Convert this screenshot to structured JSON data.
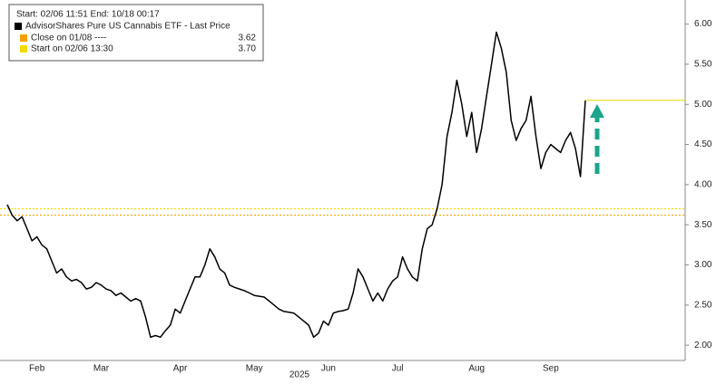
{
  "chart_data": {
    "type": "line",
    "legend_header": "Start: 02/06 11:51 End: 10/18 00:17",
    "x_axis_label": "2025",
    "categories": [
      null,
      null,
      null,
      null,
      null,
      null,
      "Feb",
      null,
      null,
      null,
      null,
      null,
      null,
      null,
      null,
      null,
      null,
      null,
      null,
      "Mar",
      null,
      null,
      null,
      null,
      null,
      null,
      null,
      null,
      null,
      null,
      null,
      null,
      null,
      null,
      null,
      "Apr",
      null,
      null,
      null,
      null,
      null,
      null,
      null,
      null,
      null,
      null,
      null,
      null,
      null,
      null,
      "May",
      null,
      null,
      null,
      null,
      null,
      null,
      null,
      null,
      null,
      null,
      null,
      null,
      null,
      null,
      "Jun",
      null,
      null,
      null,
      null,
      null,
      null,
      null,
      null,
      null,
      null,
      null,
      null,
      null,
      "Jul",
      null,
      null,
      null,
      null,
      null,
      null,
      null,
      null,
      null,
      null,
      null,
      null,
      null,
      null,
      null,
      "Aug",
      null,
      null,
      null,
      null,
      null,
      null,
      null,
      null,
      null,
      null,
      null,
      null,
      null,
      null,
      "Sep",
      null,
      null,
      null,
      null,
      null,
      null,
      null
    ],
    "series": [
      {
        "name": "AdvisorShares Pure US Cannabis ETF - Last Price",
        "color": "#000000",
        "values": [
          3.75,
          3.62,
          3.55,
          3.6,
          3.45,
          3.3,
          3.35,
          3.25,
          3.2,
          3.05,
          2.9,
          2.95,
          2.85,
          2.8,
          2.82,
          2.78,
          2.7,
          2.72,
          2.78,
          2.75,
          2.7,
          2.68,
          2.62,
          2.65,
          2.6,
          2.55,
          2.58,
          2.55,
          2.35,
          2.1,
          2.12,
          2.1,
          2.18,
          2.25,
          2.45,
          2.4,
          2.55,
          2.7,
          2.85,
          2.85,
          3.0,
          3.2,
          3.1,
          2.95,
          2.9,
          2.75,
          2.72,
          2.7,
          2.68,
          2.65,
          2.62,
          2.61,
          2.6,
          2.55,
          2.5,
          2.45,
          2.42,
          2.41,
          2.4,
          2.35,
          2.3,
          2.25,
          2.1,
          2.15,
          2.3,
          2.25,
          2.4,
          2.42,
          2.43,
          2.45,
          2.65,
          2.95,
          2.85,
          2.7,
          2.55,
          2.65,
          2.55,
          2.7,
          2.8,
          2.85,
          3.1,
          2.95,
          2.85,
          2.8,
          3.2,
          3.45,
          3.5,
          3.7,
          4.0,
          4.6,
          4.9,
          5.3,
          5.0,
          4.6,
          4.9,
          4.4,
          4.7,
          5.1,
          5.5,
          5.9,
          5.7,
          5.4,
          4.8,
          4.55,
          4.7,
          4.8,
          5.1,
          4.6,
          4.2,
          4.4,
          4.5,
          4.45,
          4.4,
          4.55,
          4.65,
          4.45,
          4.1,
          5.05
        ]
      }
    ],
    "reference_lines": [
      {
        "name": "Close on 01/08 ----",
        "value": 3.62,
        "color": "#f5a000"
      },
      {
        "name": "Start on 02/06 13:30",
        "value": 3.7,
        "value_label": "3.70",
        "color": "#f2dc00"
      }
    ],
    "last_price_line_color": "#e8d400",
    "ylim": [
      1.81,
      6.3
    ],
    "yticks": [
      {
        "value": 2,
        "label": "2.00"
      },
      {
        "value": 2.5,
        "label": "2.50"
      },
      {
        "value": 3,
        "label": "3.00"
      },
      {
        "value": 3.5,
        "label": "3.50"
      },
      {
        "value": 4,
        "label": "4.00"
      },
      {
        "value": 4.5,
        "label": "4.50"
      },
      {
        "value": 5,
        "label": "5.00"
      },
      {
        "value": 5.5,
        "label": "5.50"
      },
      {
        "value": 6,
        "label": "6.00"
      }
    ],
    "legend_position": "top-left"
  }
}
